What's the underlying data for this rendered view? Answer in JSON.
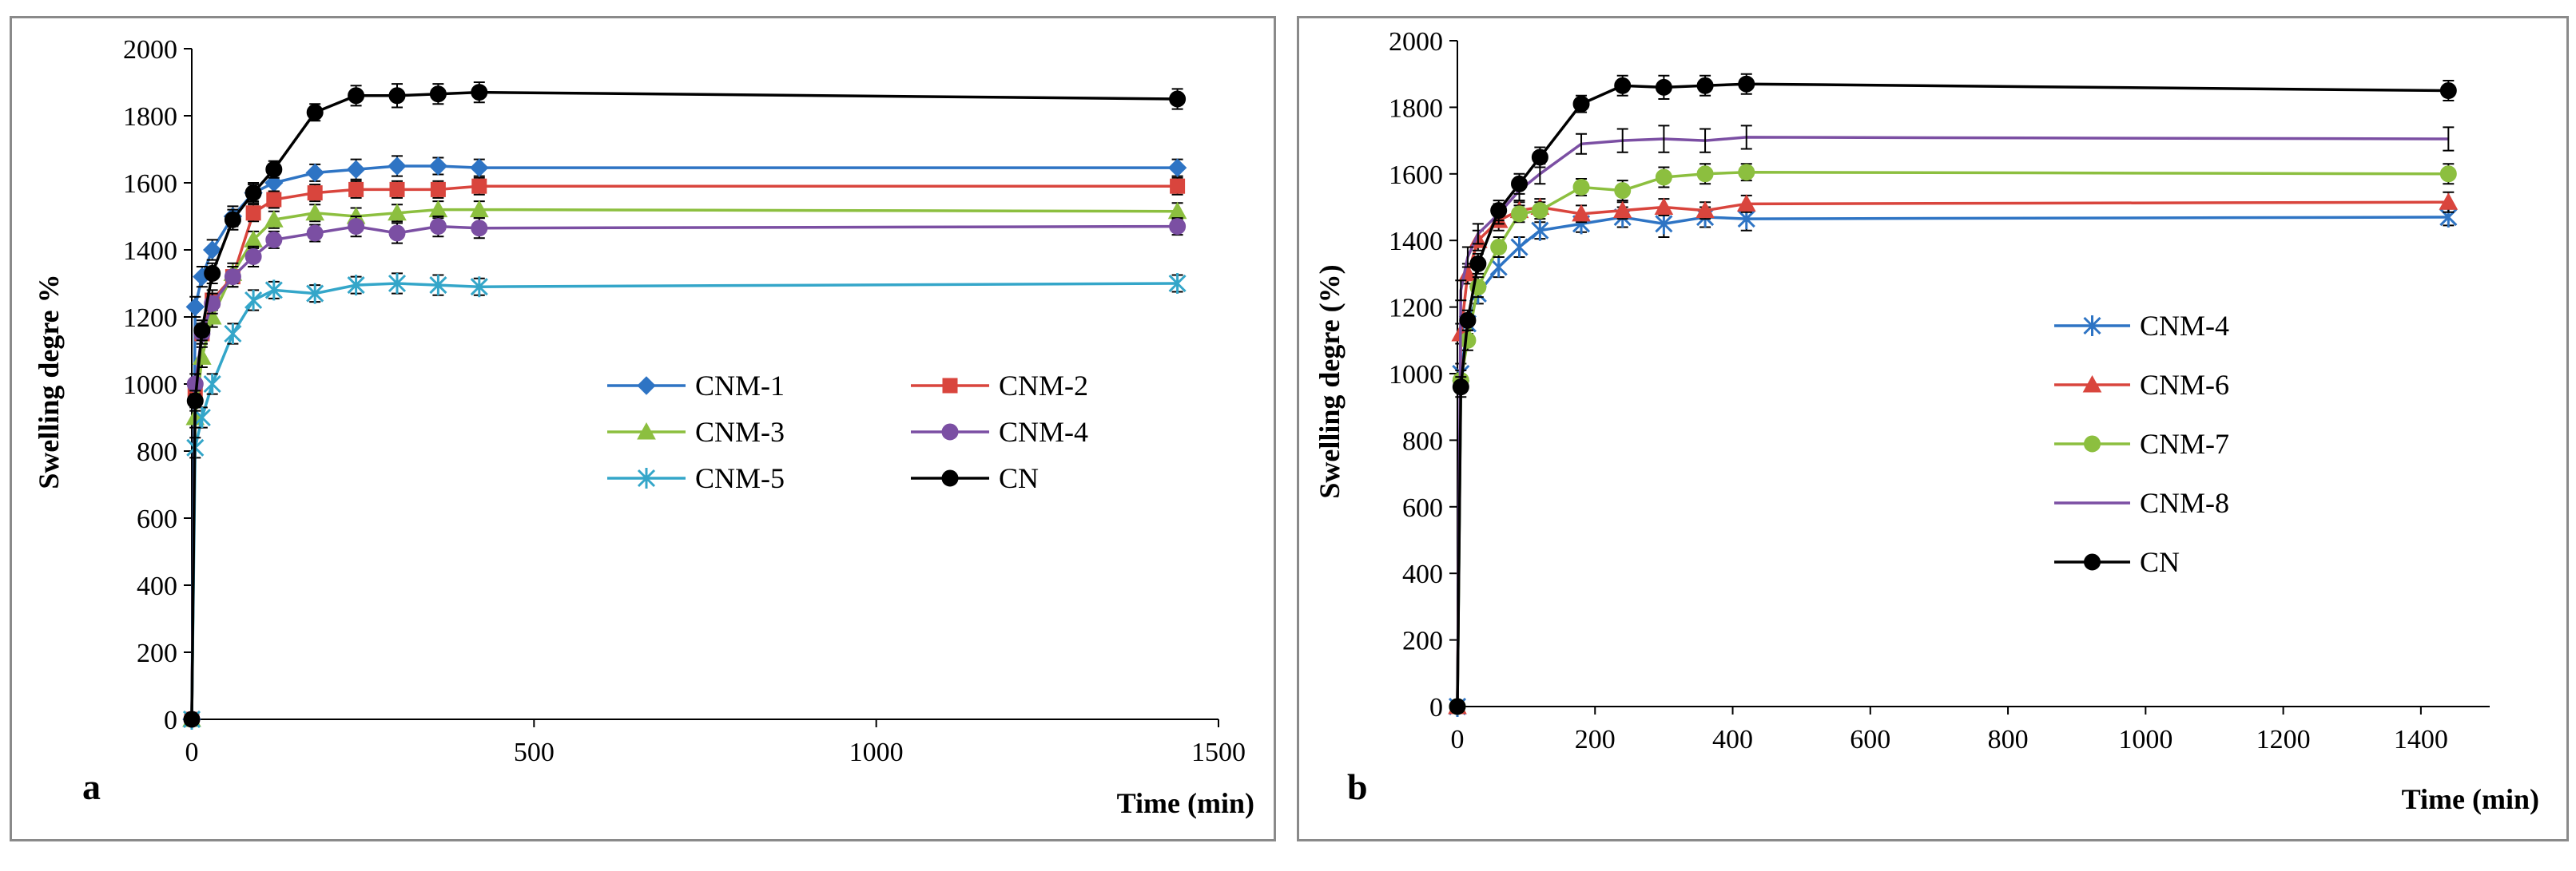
{
  "chart_data": [
    {
      "type": "line",
      "panel_label": "a",
      "xlabel": "Time (min)",
      "ylabel": "Swelling degre %",
      "xlim": [
        0,
        1500
      ],
      "ylim": [
        0,
        2000
      ],
      "xticks": [
        0,
        500,
        1000,
        1500
      ],
      "yticks": [
        0,
        200,
        400,
        600,
        800,
        1000,
        1200,
        1400,
        1600,
        1800,
        2000
      ],
      "legend_columns": 2,
      "series": [
        {
          "name": "CNM-1",
          "color": "#2e74c4",
          "marker": "diamond",
          "dash": "solid",
          "x": [
            0,
            5,
            15,
            30,
            60,
            90,
            120,
            180,
            240,
            300,
            360,
            420,
            1440
          ],
          "y": [
            0,
            1230,
            1320,
            1400,
            1500,
            1570,
            1600,
            1630,
            1640,
            1650,
            1650,
            1645,
            1645
          ],
          "err": [
            0,
            30,
            30,
            30,
            30,
            25,
            25,
            25,
            30,
            30,
            25,
            25,
            25
          ]
        },
        {
          "name": "CNM-2",
          "color": "#d9453d",
          "marker": "square",
          "dash": "solid",
          "x": [
            0,
            5,
            15,
            30,
            60,
            90,
            120,
            180,
            240,
            300,
            360,
            420,
            1440
          ],
          "y": [
            0,
            980,
            1150,
            1250,
            1320,
            1510,
            1550,
            1570,
            1580,
            1580,
            1580,
            1590,
            1590
          ],
          "err": [
            0,
            30,
            30,
            30,
            30,
            25,
            25,
            25,
            25,
            25,
            25,
            25,
            25
          ]
        },
        {
          "name": "CNM-3",
          "color": "#8cbf3f",
          "marker": "triangle",
          "dash": "solid",
          "x": [
            0,
            5,
            15,
            30,
            60,
            90,
            120,
            180,
            240,
            300,
            360,
            420,
            1440
          ],
          "y": [
            0,
            900,
            1080,
            1200,
            1330,
            1430,
            1490,
            1510,
            1500,
            1510,
            1520,
            1520,
            1515
          ],
          "err": [
            0,
            30,
            30,
            30,
            30,
            25,
            25,
            25,
            25,
            25,
            25,
            25,
            25
          ]
        },
        {
          "name": "CNM-4",
          "color": "#7b4fa3",
          "marker": "circle",
          "dash": "solid",
          "x": [
            0,
            5,
            15,
            30,
            60,
            90,
            120,
            180,
            240,
            300,
            360,
            420,
            1440
          ],
          "y": [
            0,
            1000,
            1150,
            1240,
            1320,
            1380,
            1430,
            1450,
            1470,
            1450,
            1470,
            1465,
            1470
          ],
          "err": [
            0,
            30,
            30,
            30,
            30,
            30,
            25,
            25,
            30,
            30,
            30,
            30,
            25
          ]
        },
        {
          "name": "CNM-5",
          "color": "#34a6c9",
          "marker": "star",
          "dash": "solid",
          "x": [
            0,
            5,
            15,
            30,
            60,
            90,
            120,
            180,
            240,
            300,
            360,
            420,
            1440
          ],
          "y": [
            0,
            810,
            900,
            1000,
            1150,
            1250,
            1280,
            1270,
            1295,
            1300,
            1295,
            1290,
            1300
          ],
          "err": [
            0,
            30,
            30,
            30,
            30,
            30,
            25,
            25,
            25,
            30,
            30,
            25,
            25
          ]
        },
        {
          "name": "CN",
          "color": "#000000",
          "marker": "circle",
          "dash": "solid",
          "x": [
            0,
            5,
            15,
            30,
            60,
            90,
            120,
            180,
            240,
            300,
            360,
            420,
            1440
          ],
          "y": [
            0,
            950,
            1160,
            1330,
            1490,
            1570,
            1640,
            1810,
            1860,
            1860,
            1865,
            1870,
            1850
          ],
          "err": [
            0,
            30,
            30,
            30,
            30,
            30,
            25,
            25,
            30,
            35,
            30,
            30,
            30
          ]
        }
      ]
    },
    {
      "type": "line",
      "panel_label": "b",
      "xlabel": "Time (min)",
      "ylabel": "Swelling degre (%)",
      "xlim": [
        0,
        1500
      ],
      "ylim": [
        0,
        2000
      ],
      "xticks": [
        0,
        200,
        400,
        600,
        800,
        1000,
        1200,
        1400
      ],
      "yticks": [
        0,
        200,
        400,
        600,
        800,
        1000,
        1200,
        1400,
        1600,
        1800,
        2000
      ],
      "legend_columns": 1,
      "series": [
        {
          "name": "CNM-4",
          "color": "#2e74c4",
          "marker": "star",
          "dash": "solid",
          "x": [
            0,
            5,
            15,
            30,
            60,
            90,
            120,
            180,
            240,
            300,
            360,
            420,
            1440
          ],
          "y": [
            0,
            1000,
            1150,
            1240,
            1320,
            1380,
            1430,
            1450,
            1470,
            1450,
            1470,
            1465,
            1470
          ],
          "err": [
            0,
            30,
            30,
            30,
            30,
            30,
            25,
            25,
            30,
            40,
            30,
            35,
            25
          ]
        },
        {
          "name": "CNM-6",
          "color": "#d9453d",
          "marker": "triangle",
          "dash": "solid",
          "x": [
            0,
            5,
            15,
            30,
            60,
            90,
            120,
            180,
            240,
            300,
            360,
            420,
            1440
          ],
          "y": [
            0,
            1120,
            1300,
            1400,
            1460,
            1490,
            1500,
            1480,
            1490,
            1500,
            1490,
            1510,
            1515
          ],
          "err": [
            0,
            30,
            30,
            30,
            30,
            25,
            25,
            25,
            25,
            25,
            25,
            25,
            30
          ]
        },
        {
          "name": "CNM-7",
          "color": "#8cbf3f",
          "marker": "circle",
          "dash": "solid",
          "x": [
            0,
            5,
            15,
            30,
            60,
            90,
            120,
            180,
            240,
            300,
            360,
            420,
            1440
          ],
          "y": [
            0,
            980,
            1100,
            1260,
            1380,
            1480,
            1490,
            1560,
            1550,
            1590,
            1600,
            1605,
            1600
          ],
          "err": [
            0,
            30,
            30,
            30,
            30,
            25,
            25,
            25,
            30,
            30,
            30,
            25,
            30
          ]
        },
        {
          "name": "CNM-8",
          "color": "#7b4fa3",
          "marker": "none",
          "dash": "solid",
          "x": [
            0,
            5,
            15,
            30,
            60,
            90,
            120,
            180,
            240,
            300,
            360,
            420,
            1440
          ],
          "y": [
            0,
            1250,
            1350,
            1420,
            1480,
            1550,
            1600,
            1690,
            1700,
            1705,
            1700,
            1710,
            1705
          ],
          "err": [
            0,
            30,
            30,
            30,
            30,
            30,
            30,
            30,
            35,
            40,
            35,
            35,
            35
          ]
        },
        {
          "name": "CN",
          "color": "#000000",
          "marker": "circle",
          "dash": "solid",
          "x": [
            0,
            5,
            15,
            30,
            60,
            90,
            120,
            180,
            240,
            300,
            360,
            420,
            1440
          ],
          "y": [
            0,
            960,
            1160,
            1330,
            1490,
            1570,
            1650,
            1810,
            1865,
            1860,
            1865,
            1870,
            1850
          ],
          "err": [
            0,
            30,
            30,
            30,
            30,
            30,
            30,
            25,
            30,
            35,
            30,
            30,
            30
          ]
        }
      ]
    }
  ]
}
